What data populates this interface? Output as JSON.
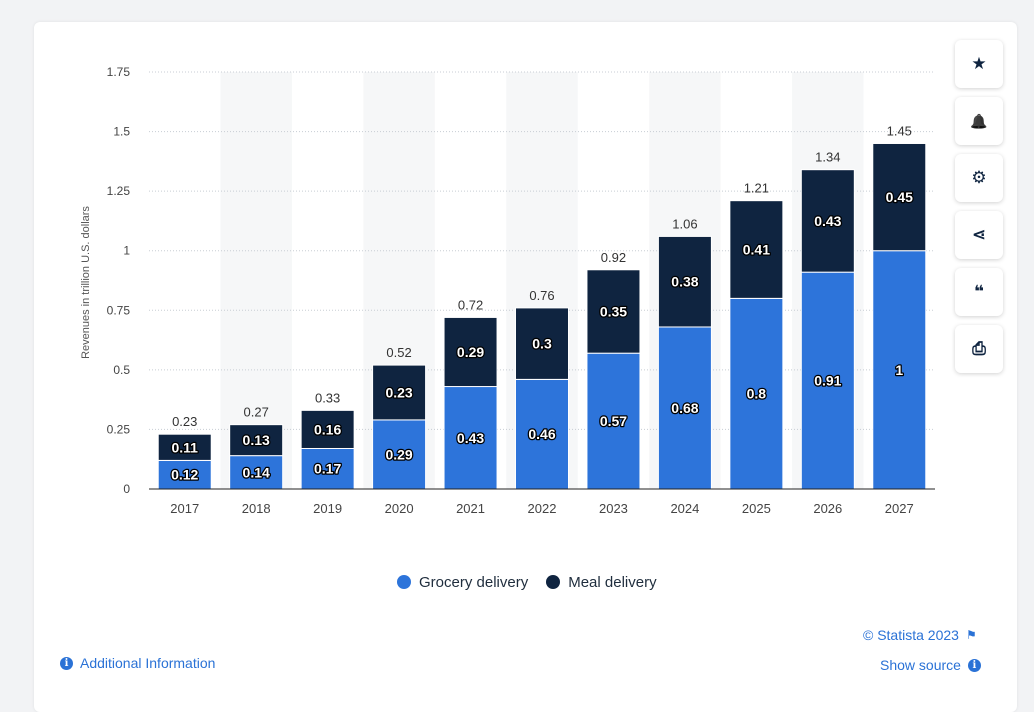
{
  "chart_data": {
    "type": "bar",
    "stacked": true,
    "categories": [
      "2017",
      "2018",
      "2019",
      "2020",
      "2021",
      "2022",
      "2023",
      "2024",
      "2025",
      "2026",
      "2027"
    ],
    "series": [
      {
        "name": "Grocery delivery",
        "color": "#2d74da",
        "values": [
          0.12,
          0.14,
          0.17,
          0.29,
          0.43,
          0.46,
          0.57,
          0.68,
          0.8,
          0.91,
          1
        ]
      },
      {
        "name": "Meal delivery",
        "color": "#0f2440",
        "values": [
          0.11,
          0.13,
          0.16,
          0.23,
          0.29,
          0.3,
          0.35,
          0.38,
          0.41,
          0.43,
          0.45
        ]
      }
    ],
    "totals": [
      0.23,
      0.27,
      0.33,
      0.52,
      0.72,
      0.76,
      0.92,
      1.06,
      1.21,
      1.34,
      1.45
    ],
    "ylabel": "Revenues in trillion U.S. dollars",
    "ylim": [
      0,
      1.75
    ],
    "yticks": [
      0,
      0.25,
      0.5,
      0.75,
      1,
      1.25,
      1.5,
      1.75
    ],
    "ytick_labels": [
      "0",
      "0.25",
      "0.5",
      "0.75",
      "1",
      "1.25",
      "1.5",
      "1.75"
    ],
    "grid": true,
    "legend": "bottom"
  },
  "toolbar": {
    "buttons": [
      {
        "name": "favorite",
        "icon": "star-icon",
        "glyph": "★"
      },
      {
        "name": "notification",
        "icon": "bell-icon",
        "glyph": "🔔"
      },
      {
        "name": "settings",
        "icon": "gear-icon",
        "glyph": "⚙"
      },
      {
        "name": "share",
        "icon": "share-icon",
        "glyph": "⋖"
      },
      {
        "name": "cite",
        "icon": "quote-icon",
        "glyph": "❝"
      },
      {
        "name": "print",
        "icon": "print-icon",
        "glyph": "⎙"
      }
    ]
  },
  "footer": {
    "copyright": "© Statista 2023",
    "show_source": "Show source",
    "additional_info": "Additional Information"
  }
}
